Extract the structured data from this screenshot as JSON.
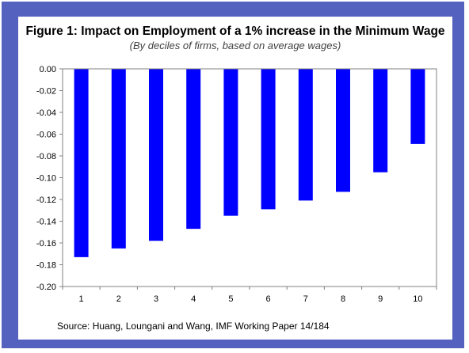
{
  "chart_data": {
    "type": "bar",
    "title": "Figure 1: Impact on Employment of a 1% increase in the Minimum Wage",
    "subtitle": "(By deciles of firms, based on average wages)",
    "source": "Source: Huang, Loungani and Wang, IMF Working Paper 14/184",
    "categories": [
      "1",
      "2",
      "3",
      "4",
      "5",
      "6",
      "7",
      "8",
      "9",
      "10"
    ],
    "values": [
      -0.173,
      -0.165,
      -0.158,
      -0.147,
      -0.135,
      -0.129,
      -0.121,
      -0.113,
      -0.095,
      -0.069
    ],
    "ylim": [
      -0.2,
      0.0
    ],
    "yticks": [
      "0.00",
      "-0.02",
      "-0.04",
      "-0.06",
      "-0.08",
      "-0.10",
      "-0.12",
      "-0.14",
      "-0.16",
      "-0.18",
      "-0.20"
    ],
    "ytick_values": [
      0.0,
      -0.02,
      -0.04,
      -0.06,
      -0.08,
      -0.1,
      -0.12,
      -0.14,
      -0.16,
      -0.18,
      -0.2
    ],
    "xlabel": "",
    "ylabel": "",
    "grid": false,
    "legend": "none",
    "bar_color": "#0000ff",
    "frame_color": "#5561bf"
  }
}
